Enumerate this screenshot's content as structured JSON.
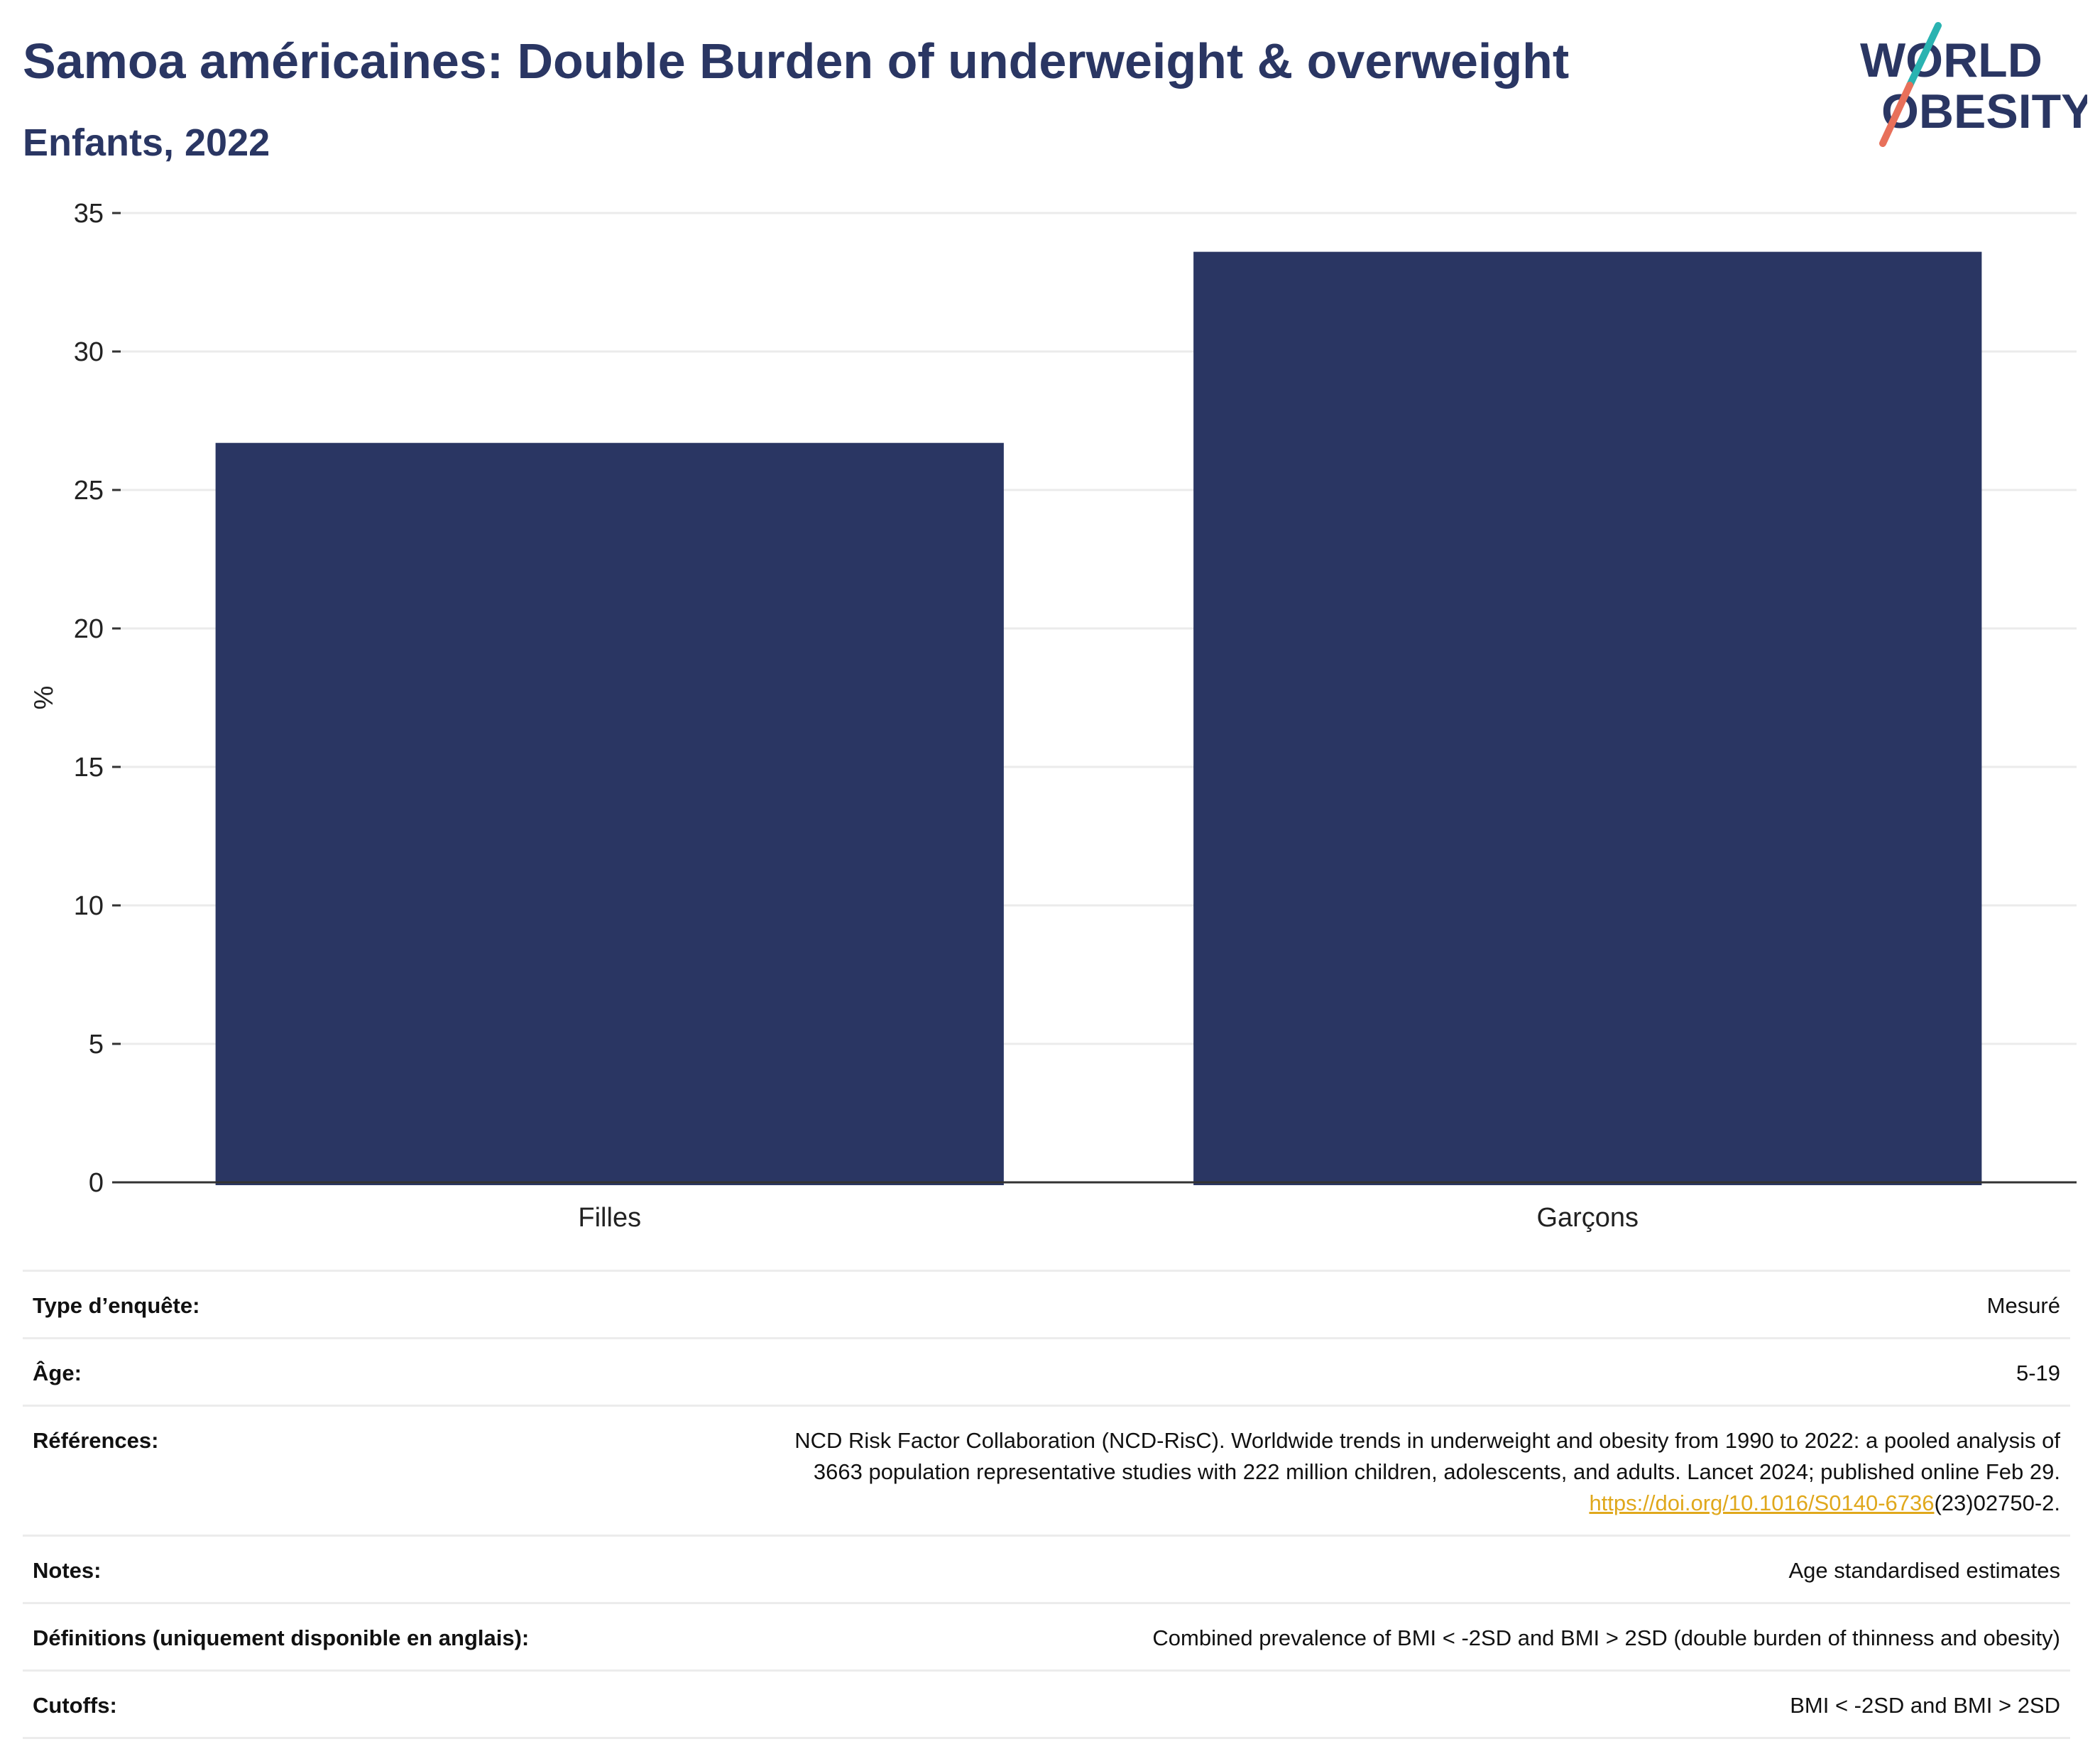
{
  "header": {
    "title": "Samoa américaines: Double Burden of underweight & overweight",
    "subtitle": "Enfants, 2022"
  },
  "logo": {
    "line1": "WORLD",
    "line2": "OBESITY",
    "colors": {
      "text": "#2a3663",
      "slash_top": "#2ab3b1",
      "slash_bottom": "#e8705a"
    }
  },
  "chart_data": {
    "type": "bar",
    "categories": [
      "Filles",
      "Garçons"
    ],
    "values": [
      26.7,
      33.6
    ],
    "ylabel": "%",
    "xlabel": "",
    "ylim": [
      0,
      35
    ],
    "yticks": [
      0,
      5,
      10,
      15,
      20,
      25,
      30,
      35
    ],
    "grid": true,
    "bar_color": "#2a3663"
  },
  "info_table": {
    "rows": [
      {
        "label": "Type d’enquête:",
        "value": "Mesuré"
      },
      {
        "label": "Âge:",
        "value": "5-19"
      },
      {
        "label": "Références:",
        "value_line1": "NCD Risk Factor Collaboration (NCD-RisC). Worldwide trends in underweight and obesity from 1990 to 2022: a pooled analysis of",
        "value_line2": "3663 population representative studies with 222 million children, adolescents, and adults. Lancet 2024; published online Feb 29.",
        "link": "https://doi.org/10.1016/S0140-6736",
        "link_suffix": "(23)02750-2."
      },
      {
        "label": "Notes:",
        "value": "Age standardised estimates"
      },
      {
        "label": "Définitions (uniquement disponible en anglais):",
        "value": "Combined prevalence of BMI < -2SD and BMI > 2SD (double burden of thinness and obesity)"
      },
      {
        "label": "Cutoffs:",
        "value": "BMI < -2SD and BMI > 2SD"
      }
    ]
  }
}
